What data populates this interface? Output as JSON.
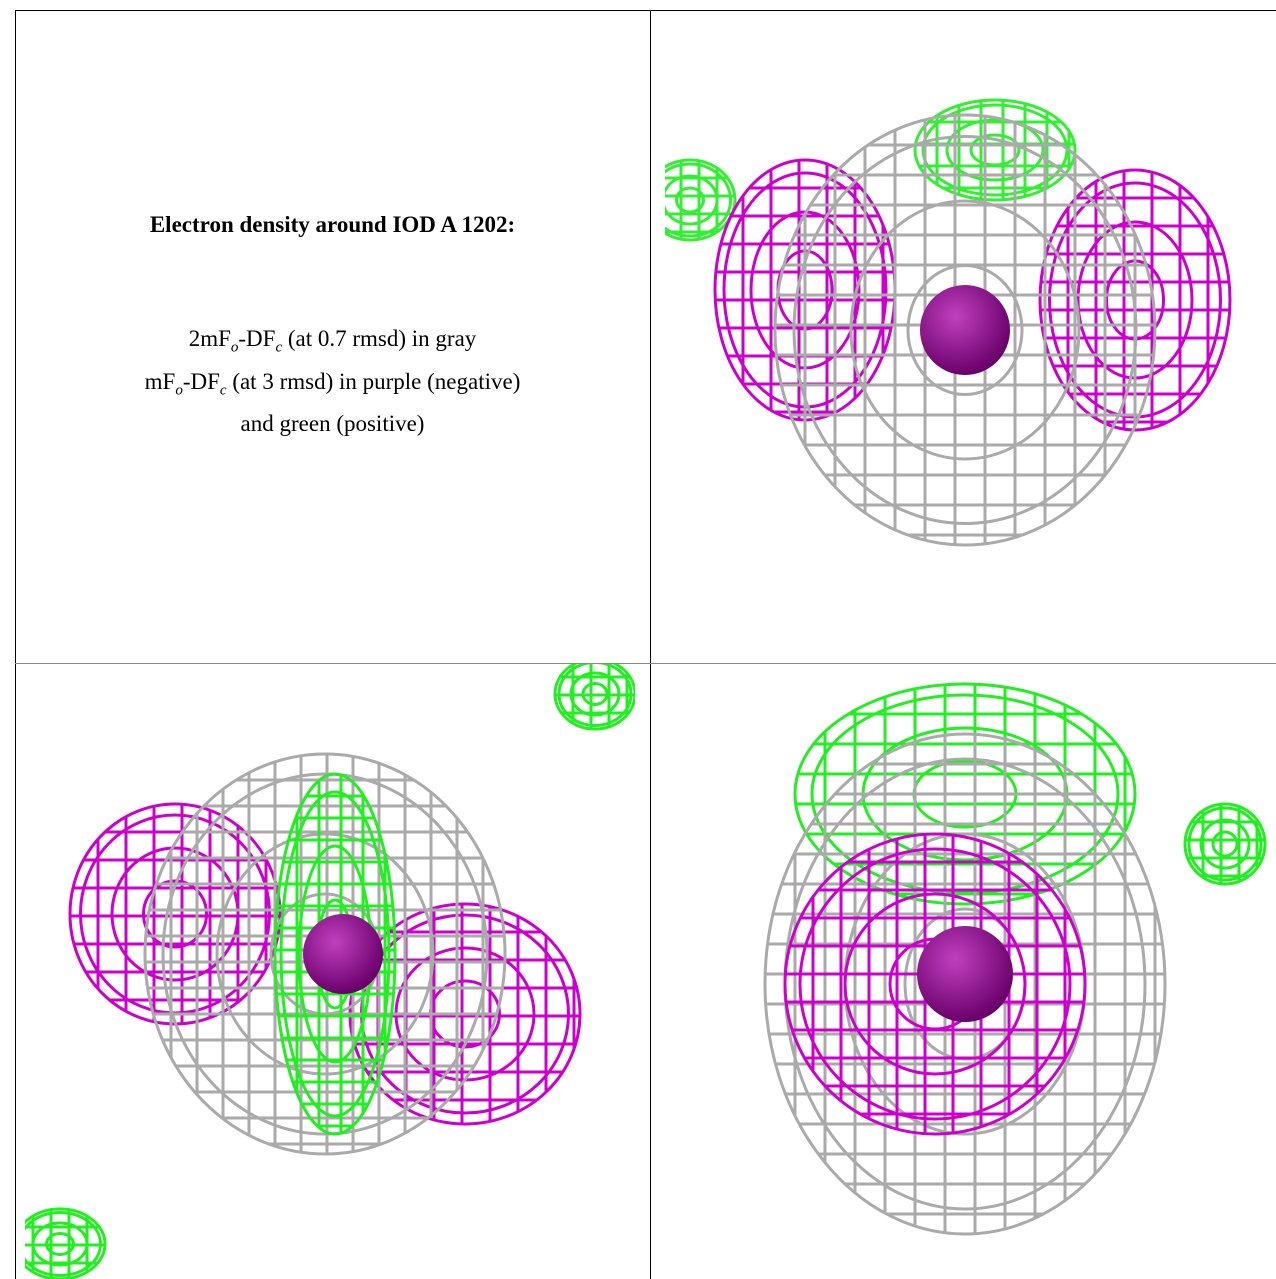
{
  "header": {
    "title": "Electron density around IOD A 1202:"
  },
  "caption": {
    "lines": [
      [
        "2mF",
        "o",
        "-DF",
        "c",
        " (at 0.7 rmsd) in gray"
      ],
      [
        "mF",
        "o",
        "-DF",
        "c",
        " (at 3 rmsd) in purple (negative)"
      ],
      [
        "and green (positive)"
      ]
    ]
  }
}
